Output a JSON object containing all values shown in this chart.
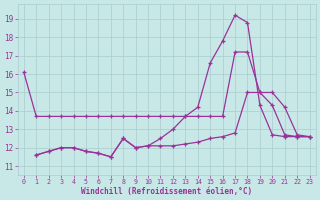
{
  "background_color": "#c8e8e8",
  "grid_color": "#aacccc",
  "line_color": "#993399",
  "xlabel": "Windchill (Refroidissement éolien,°C)",
  "xlabel_color": "#993399",
  "tick_color": "#993399",
  "xlim": [
    -0.5,
    23.5
  ],
  "ylim": [
    10.5,
    19.8
  ],
  "yticks": [
    11,
    12,
    13,
    14,
    15,
    16,
    17,
    18,
    19
  ],
  "xticks": [
    0,
    1,
    2,
    3,
    4,
    5,
    6,
    7,
    8,
    9,
    10,
    11,
    12,
    13,
    14,
    15,
    16,
    17,
    18,
    19,
    20,
    21,
    22,
    23
  ],
  "series": [
    {
      "x": [
        0,
        1,
        2,
        3,
        4,
        5,
        6,
        7,
        8,
        9,
        10,
        11,
        12,
        13,
        14,
        15,
        16,
        17,
        18,
        19,
        20,
        21,
        22,
        23
      ],
      "y": [
        16.1,
        13.7,
        13.7,
        13.7,
        13.7,
        13.7,
        13.7,
        13.7,
        13.7,
        13.7,
        13.7,
        13.7,
        13.7,
        13.7,
        13.7,
        13.7,
        13.7,
        17.2,
        17.2,
        15.0,
        14.3,
        12.7,
        12.6,
        12.6
      ]
    },
    {
      "x": [
        1,
        2,
        3,
        4,
        5,
        6,
        7,
        8,
        9,
        10,
        11,
        12,
        13,
        14,
        15,
        16,
        17,
        18,
        19,
        20,
        21,
        22,
        23
      ],
      "y": [
        11.6,
        11.8,
        12.0,
        12.0,
        11.8,
        11.7,
        11.5,
        12.5,
        12.0,
        12.1,
        12.5,
        13.0,
        13.7,
        14.2,
        16.6,
        17.8,
        19.2,
        18.8,
        14.3,
        12.7,
        12.6,
        12.6,
        12.6
      ]
    },
    {
      "x": [
        1,
        2,
        3,
        4,
        5,
        6,
        7,
        8,
        9,
        10,
        11,
        12,
        13,
        14,
        15,
        16,
        17,
        18,
        19,
        20,
        21,
        22,
        23
      ],
      "y": [
        11.6,
        11.8,
        12.0,
        12.0,
        11.8,
        11.7,
        11.5,
        12.5,
        12.0,
        12.1,
        12.1,
        12.1,
        12.2,
        12.3,
        12.5,
        12.6,
        12.8,
        15.0,
        15.0,
        15.0,
        14.2,
        12.7,
        12.6
      ]
    }
  ]
}
